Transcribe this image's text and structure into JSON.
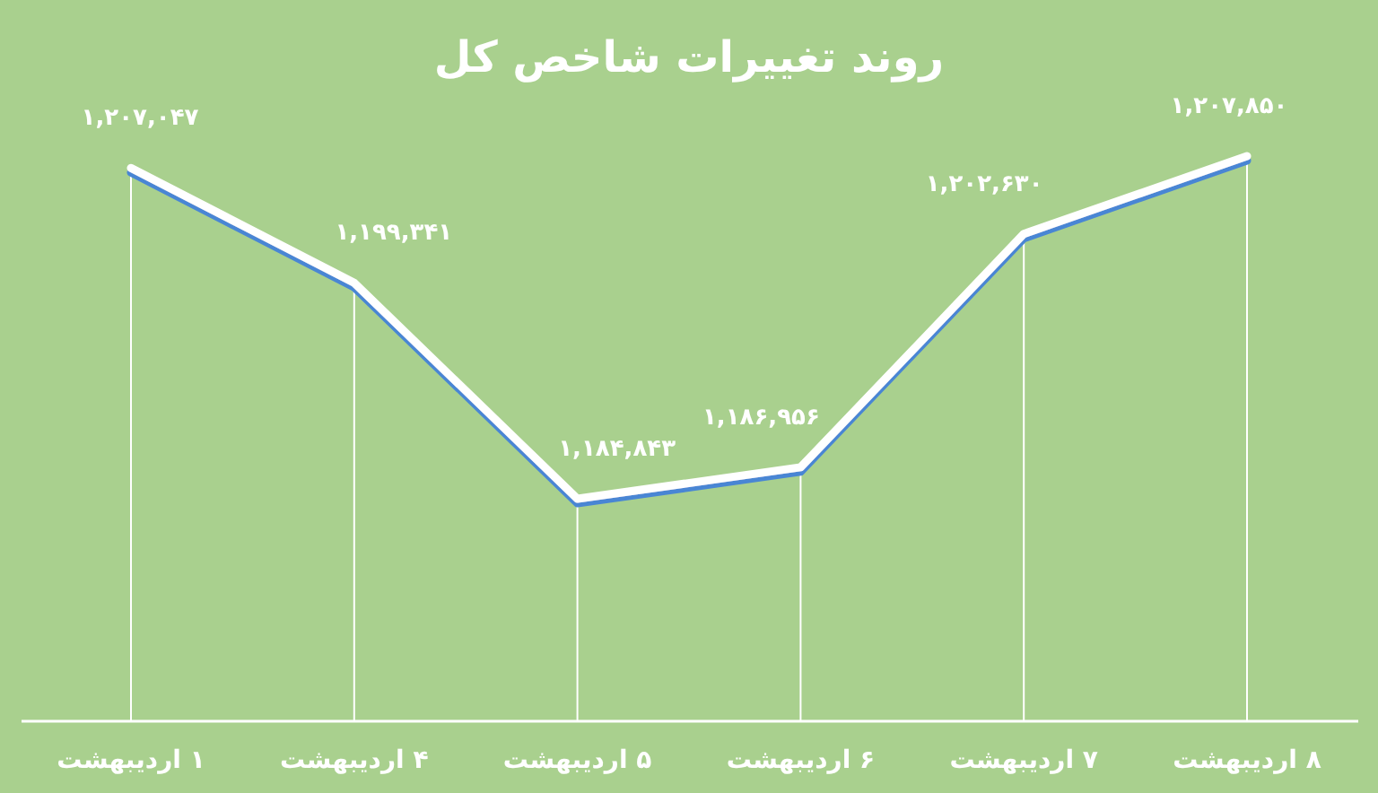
{
  "chart_data": {
    "type": "line",
    "title": "روند تغییرات شاخص کل",
    "categories": [
      "۱ اردیبهشت",
      "۴ اردیبهشت",
      "۵ اردیبهشت",
      "۶ اردیبهشت",
      "۷ اردیبهشت",
      "۸ اردیبهشت"
    ],
    "series": [
      {
        "color": "#ffffff",
        "values": [
          1207047,
          1199341,
          1184843,
          1186956,
          1202630,
          1207850
        ],
        "value_labels": [
          "۱,۲۰۷,۰۴۷",
          "۱,۱۹۹,۳۴۱",
          "۱,۱۸۴,۸۴۳",
          "۱,۱۸۶,۹۵۶",
          "۱,۲۰۲,۶۳۰",
          "۱,۲۰۷,۸۵۰"
        ]
      }
    ],
    "marker": "none",
    "grid": "x"
  }
}
